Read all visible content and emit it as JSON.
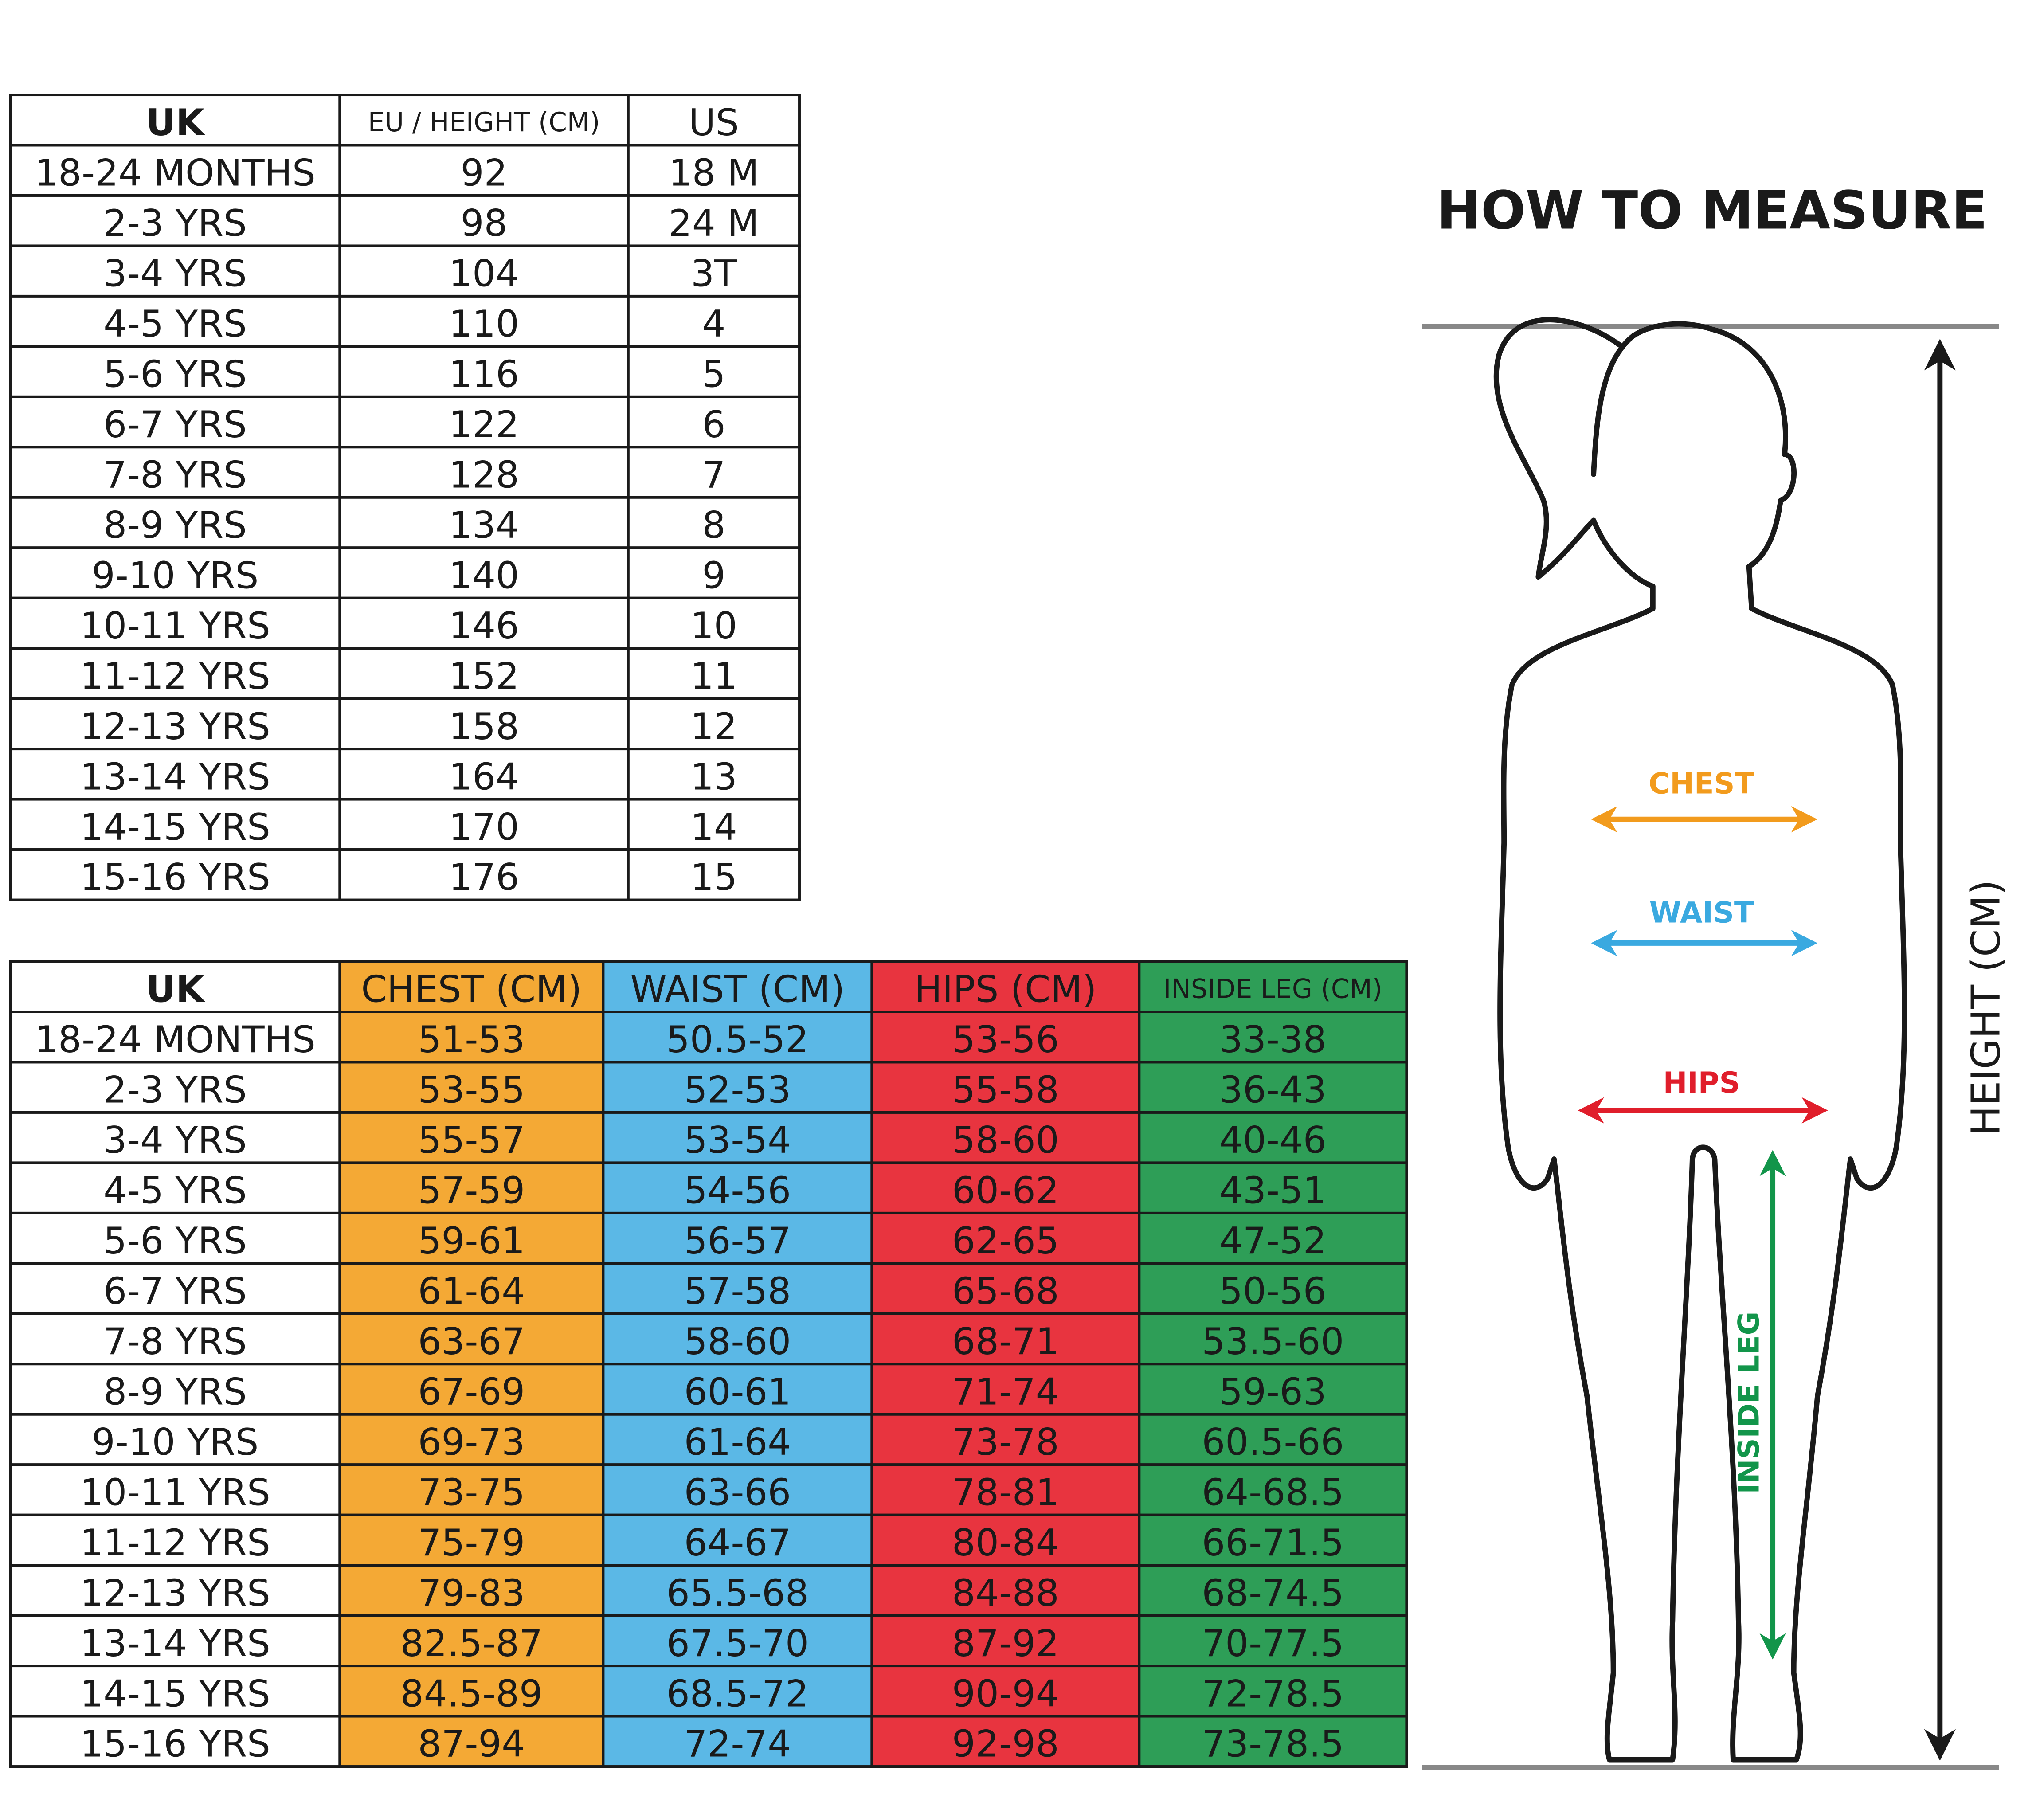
{
  "size_table": {
    "header": [
      "UK",
      "EU / HEIGHT (CM)",
      "US"
    ],
    "rows": [
      [
        "18-24 MONTHS",
        "92",
        "18 M"
      ],
      [
        "2-3 YRS",
        "98",
        "24 M"
      ],
      [
        "3-4 YRS",
        "104",
        "3T"
      ],
      [
        "4-5 YRS",
        "110",
        "4"
      ],
      [
        "5-6 YRS",
        "116",
        "5"
      ],
      [
        "6-7 YRS",
        "122",
        "6"
      ],
      [
        "7-8 YRS",
        "128",
        "7"
      ],
      [
        "8-9 YRS",
        "134",
        "8"
      ],
      [
        "9-10 YRS",
        "140",
        "9"
      ],
      [
        "10-11 YRS",
        "146",
        "10"
      ],
      [
        "11-12 YRS",
        "152",
        "11"
      ],
      [
        "12-13 YRS",
        "158",
        "12"
      ],
      [
        "13-14 YRS",
        "164",
        "13"
      ],
      [
        "14-15 YRS",
        "170",
        "14"
      ],
      [
        "15-16 YRS",
        "176",
        "15"
      ]
    ]
  },
  "measure_table": {
    "header": [
      "UK",
      "CHEST (CM)",
      "WAIST (CM)",
      "HIPS (CM)",
      "INSIDE LEG (CM)"
    ],
    "rows": [
      [
        "18-24 MONTHS",
        "51-53",
        "50.5-52",
        "53-56",
        "33-38"
      ],
      [
        "2-3 YRS",
        "53-55",
        "52-53",
        "55-58",
        "36-43"
      ],
      [
        "3-4 YRS",
        "55-57",
        "53-54",
        "58-60",
        "40-46"
      ],
      [
        "4-5 YRS",
        "57-59",
        "54-56",
        "60-62",
        "43-51"
      ],
      [
        "5-6 YRS",
        "59-61",
        "56-57",
        "62-65",
        "47-52"
      ],
      [
        "6-7 YRS",
        "61-64",
        "57-58",
        "65-68",
        "50-56"
      ],
      [
        "7-8 YRS",
        "63-67",
        "58-60",
        "68-71",
        "53.5-60"
      ],
      [
        "8-9 YRS",
        "67-69",
        "60-61",
        "71-74",
        "59-63"
      ],
      [
        "9-10 YRS",
        "69-73",
        "61-64",
        "73-78",
        "60.5-66"
      ],
      [
        "10-11 YRS",
        "73-75",
        "63-66",
        "78-81",
        "64-68.5"
      ],
      [
        "11-12 YRS",
        "75-79",
        "64-67",
        "80-84",
        "66-71.5"
      ],
      [
        "12-13 YRS",
        "79-83",
        "65.5-68",
        "84-88",
        "68-74.5"
      ],
      [
        "13-14 YRS",
        "82.5-87",
        "67.5-70",
        "87-92",
        "70-77.5"
      ],
      [
        "14-15 YRS",
        "84.5-89",
        "68.5-72",
        "90-94",
        "72-78.5"
      ],
      [
        "15-16 YRS",
        "87-94",
        "72-74",
        "92-98",
        "73-78.5"
      ]
    ]
  },
  "figure": {
    "title": "HOW TO MEASURE",
    "chest": "CHEST",
    "waist": "WAIST",
    "hips": "HIPS",
    "inside_leg": "INSIDE LEG",
    "height": "HEIGHT (CM)"
  }
}
